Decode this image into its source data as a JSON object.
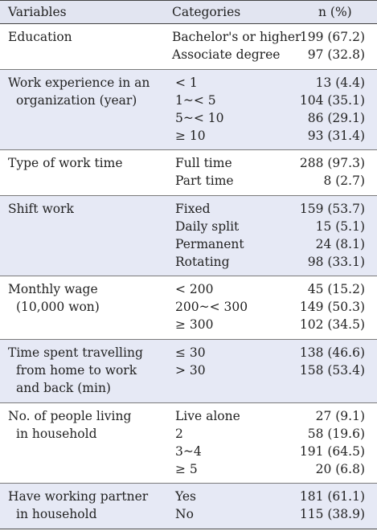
{
  "header": {
    "variables": "Variables",
    "categories": "Categories",
    "n": "n (%)"
  },
  "groups": [
    {
      "var_lines": [
        "Education"
      ],
      "shade": false,
      "rows": [
        {
          "cat": "Bachelor's or higher",
          "n": "199 (67.2)"
        },
        {
          "cat": "Associate degree",
          "n": "97 (32.8)"
        }
      ]
    },
    {
      "var_lines": [
        "Work experience in an",
        "organization (year)"
      ],
      "shade": true,
      "rows": [
        {
          "cat": "< 1",
          "n": "13 (4.4)"
        },
        {
          "cat": "1~< 5",
          "n": "104 (35.1)"
        },
        {
          "cat": "5~< 10",
          "n": "86 (29.1)"
        },
        {
          "cat": "≥ 10",
          "n": "93 (31.4)"
        }
      ]
    },
    {
      "var_lines": [
        "Type of work time"
      ],
      "shade": false,
      "rows": [
        {
          "cat": "Full time",
          "n": "288 (97.3)"
        },
        {
          "cat": "Part time",
          "n": "8 (2.7)"
        }
      ]
    },
    {
      "var_lines": [
        "Shift work"
      ],
      "shade": true,
      "rows": [
        {
          "cat": "Fixed",
          "n": "159 (53.7)"
        },
        {
          "cat": "Daily split",
          "n": "15 (5.1)"
        },
        {
          "cat": "Permanent",
          "n": "24 (8.1)"
        },
        {
          "cat": "Rotating",
          "n": "98 (33.1)"
        }
      ]
    },
    {
      "var_lines": [
        "Monthly wage",
        "(10,000 won)"
      ],
      "shade": false,
      "rows": [
        {
          "cat": "< 200",
          "n": "45 (15.2)"
        },
        {
          "cat": "200~< 300",
          "n": "149 (50.3)"
        },
        {
          "cat": "≥ 300",
          "n": "102 (34.5)"
        }
      ]
    },
    {
      "var_lines": [
        "Time spent travelling",
        "from home to work",
        "and back (min)"
      ],
      "shade": true,
      "rows": [
        {
          "cat": "≤ 30",
          "n": "138 (46.6)"
        },
        {
          "cat": "> 30",
          "n": "158 (53.4)"
        }
      ]
    },
    {
      "var_lines": [
        "No. of people living",
        "in household"
      ],
      "shade": false,
      "rows": [
        {
          "cat": "Live alone",
          "n": "27 (9.1)"
        },
        {
          "cat": "2",
          "n": "58 (19.6)"
        },
        {
          "cat": "3~4",
          "n": "191 (64.5)"
        },
        {
          "cat": "≥ 5",
          "n": "20 (6.8)"
        }
      ]
    },
    {
      "var_lines": [
        "Have working partner",
        "in household"
      ],
      "shade": true,
      "rows": [
        {
          "cat": "Yes",
          "n": "181 (61.1)"
        },
        {
          "cat": "No",
          "n": "115 (38.9)"
        }
      ]
    }
  ]
}
